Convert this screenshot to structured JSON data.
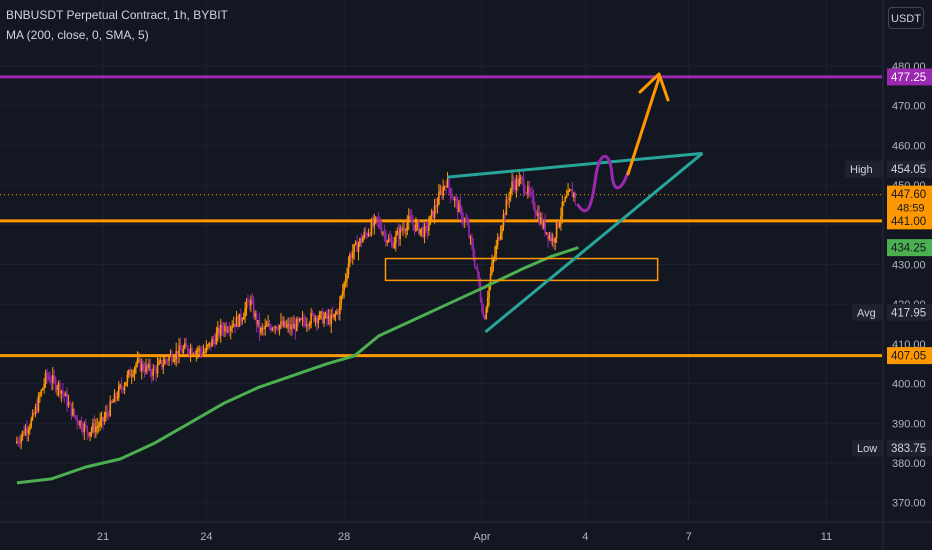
{
  "header": {
    "symbol_line": "BNBUSDT Perpetual Contract, 1h, BYBIT",
    "indicator_line": "MA (200, close, 0, SMA, 5)"
  },
  "currency_button": "USDT",
  "chart_data": {
    "type": "candlestick",
    "title": "BNBUSDT Perpetual Contract, 1h, BYBIT",
    "indicator": "MA (200, close, 0, SMA, 5)",
    "ylim": [
      365,
      487
    ],
    "x_ticks": [
      "21",
      "24",
      "28",
      "Apr",
      "4",
      "7",
      "11"
    ],
    "y_ticks": [
      "370.00",
      "380.00",
      "390.00",
      "400.00",
      "410.00",
      "420.00",
      "430.00",
      "440.00",
      "450.00",
      "460.00",
      "470.00",
      "480.00"
    ],
    "x_days": [
      21,
      24,
      28,
      32,
      35,
      38,
      42
    ],
    "x_range_days": [
      18.5,
      44
    ],
    "price_path": [
      [
        18.5,
        385
      ],
      [
        19.0,
        391
      ],
      [
        19.4,
        402
      ],
      [
        19.8,
        399
      ],
      [
        20.2,
        392
      ],
      [
        20.6,
        388
      ],
      [
        21.0,
        390
      ],
      [
        21.5,
        398
      ],
      [
        22.0,
        405
      ],
      [
        22.5,
        403
      ],
      [
        23.0,
        407
      ],
      [
        23.5,
        409
      ],
      [
        24.0,
        408
      ],
      [
        24.5,
        414
      ],
      [
        25.0,
        416
      ],
      [
        25.3,
        421
      ],
      [
        25.6,
        413
      ],
      [
        26.0,
        415
      ],
      [
        26.5,
        414
      ],
      [
        27.2,
        417
      ],
      [
        27.7,
        416
      ],
      [
        27.9,
        419
      ],
      [
        28.2,
        432
      ],
      [
        28.6,
        437
      ],
      [
        29.0,
        441
      ],
      [
        29.4,
        435
      ],
      [
        29.9,
        441
      ],
      [
        30.4,
        438
      ],
      [
        30.8,
        447
      ],
      [
        31.0,
        451
      ],
      [
        31.3,
        445
      ],
      [
        31.6,
        440
      ],
      [
        31.9,
        428
      ],
      [
        32.1,
        416
      ],
      [
        32.3,
        428
      ],
      [
        32.6,
        440
      ],
      [
        32.9,
        450
      ],
      [
        33.2,
        451
      ],
      [
        33.5,
        446
      ],
      [
        33.8,
        440
      ],
      [
        34.1,
        436
      ],
      [
        34.4,
        445
      ],
      [
        34.6,
        448
      ],
      [
        34.75,
        447.6
      ]
    ],
    "ma_path": [
      [
        18.5,
        375
      ],
      [
        19.5,
        376
      ],
      [
        20.5,
        379
      ],
      [
        21.5,
        381
      ],
      [
        22.5,
        385
      ],
      [
        23.5,
        390
      ],
      [
        24.5,
        395
      ],
      [
        25.5,
        399
      ],
      [
        26.5,
        402
      ],
      [
        27.5,
        405
      ],
      [
        28.3,
        407
      ],
      [
        29.0,
        412
      ],
      [
        30.0,
        416
      ],
      [
        31.0,
        420
      ],
      [
        32.0,
        424
      ],
      [
        32.6,
        426.5
      ],
      [
        33.2,
        429
      ],
      [
        34.0,
        432
      ],
      [
        34.8,
        434.25
      ]
    ],
    "horizontal_levels": [
      {
        "price": 477.25,
        "color": "#9c27b0"
      },
      {
        "price": 441.0,
        "color": "#ff9800"
      },
      {
        "price": 407.05,
        "color": "#ff9800"
      }
    ],
    "current_price": 447.6,
    "annotations": {
      "box": {
        "x_days": [
          29.2,
          37.1
        ],
        "price_range": [
          426,
          431.5
        ],
        "color": "#ff9800"
      },
      "wedge_upper": [
        [
          31.0,
          452
        ],
        [
          38.4,
          458
        ]
      ],
      "wedge_lower": [
        [
          32.1,
          413
        ],
        [
          38.4,
          458
        ]
      ],
      "projection_color": "#9c27b0",
      "target_arrow_color": "#ff9800",
      "triangle_color": "#26a69a"
    },
    "price_labels": [
      {
        "text": "477.25",
        "price": 477.25,
        "bg": "#9c27b0"
      },
      {
        "text": "454.05",
        "price": 454.05,
        "bg": "#1e222d",
        "tag": "High"
      },
      {
        "text": "447.60",
        "price": 447.6,
        "bg": "#ff9800",
        "countdown": "48:59"
      },
      {
        "text": "441.00",
        "price": 441.0,
        "bg": "#ff9800"
      },
      {
        "text": "434.25",
        "price": 434.25,
        "bg": "#4caf50"
      },
      {
        "text": "417.95",
        "price": 417.95,
        "bg": "#1e222d",
        "tag": "Avg"
      },
      {
        "text": "407.05",
        "price": 407.05,
        "bg": "#ff9800"
      },
      {
        "text": "383.75",
        "price": 383.75,
        "bg": "#1e222d",
        "tag": "Low"
      }
    ]
  },
  "colors": {
    "background": "#131722",
    "grid": "#1c2030",
    "axis_text": "#b2b5be",
    "candle_up": "#ff9800",
    "candle_down": "#9c27b0",
    "ma_line": "#4caf50",
    "current_price_line": "#ff9800"
  }
}
